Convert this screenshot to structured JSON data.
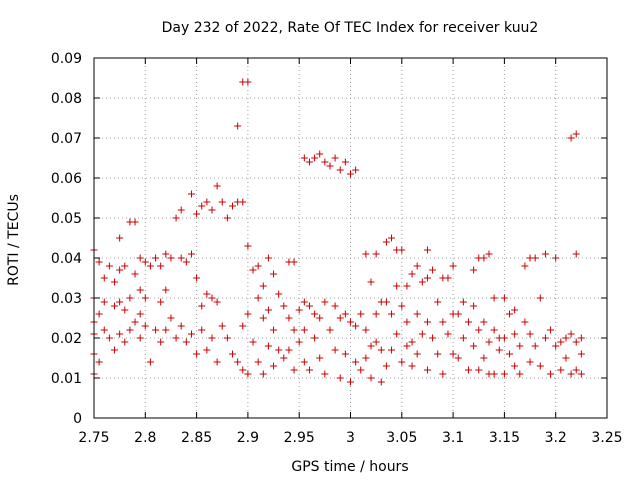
{
  "chart_data": {
    "type": "scatter",
    "title": "Day 232 of 2022, Rate Of TEC Index for receiver kuu2",
    "xlabel": "GPS time / hours",
    "ylabel": "ROTI / TECUs",
    "xlim": [
      2.75,
      3.25
    ],
    "ylim": [
      0,
      0.09
    ],
    "x_ticks": [
      "2.75",
      "2.8",
      "2.85",
      "2.9",
      "2.95",
      "3",
      "3.05",
      "3.1",
      "3.15",
      "3.2",
      "3.25"
    ],
    "y_ticks": [
      "0",
      "0.01",
      "0.02",
      "0.03",
      "0.04",
      "0.05",
      "0.06",
      "0.07",
      "0.08",
      "0.09"
    ],
    "grid": true,
    "marker": "plus",
    "color": "#cc0000",
    "series": [
      {
        "points": [
          [
            2.75,
            0.042
          ],
          [
            2.75,
            0.03
          ],
          [
            2.75,
            0.024
          ],
          [
            2.75,
            0.021
          ],
          [
            2.75,
            0.016
          ],
          [
            2.75,
            0.011
          ],
          [
            2.755,
            0.039
          ],
          [
            2.755,
            0.026
          ],
          [
            2.755,
            0.014
          ],
          [
            2.76,
            0.035
          ],
          [
            2.76,
            0.029
          ],
          [
            2.76,
            0.022
          ],
          [
            2.765,
            0.038
          ],
          [
            2.765,
            0.02
          ],
          [
            2.77,
            0.034
          ],
          [
            2.77,
            0.028
          ],
          [
            2.77,
            0.017
          ],
          [
            2.775,
            0.045
          ],
          [
            2.775,
            0.037
          ],
          [
            2.775,
            0.029
          ],
          [
            2.775,
            0.021
          ],
          [
            2.78,
            0.038
          ],
          [
            2.78,
            0.027
          ],
          [
            2.78,
            0.019
          ],
          [
            2.785,
            0.049
          ],
          [
            2.785,
            0.03
          ],
          [
            2.785,
            0.022
          ],
          [
            2.79,
            0.049
          ],
          [
            2.79,
            0.036
          ],
          [
            2.79,
            0.024
          ],
          [
            2.795,
            0.04
          ],
          [
            2.795,
            0.032
          ],
          [
            2.795,
            0.026
          ],
          [
            2.795,
            0.02
          ],
          [
            2.8,
            0.039
          ],
          [
            2.8,
            0.03
          ],
          [
            2.8,
            0.023
          ],
          [
            2.805,
            0.038
          ],
          [
            2.805,
            0.014
          ],
          [
            2.81,
            0.04
          ],
          [
            2.81,
            0.022
          ],
          [
            2.815,
            0.038
          ],
          [
            2.815,
            0.029
          ],
          [
            2.815,
            0.019
          ],
          [
            2.82,
            0.041
          ],
          [
            2.82,
            0.032
          ],
          [
            2.82,
            0.022
          ],
          [
            2.825,
            0.04
          ],
          [
            2.825,
            0.025
          ],
          [
            2.83,
            0.05
          ],
          [
            2.83,
            0.02
          ],
          [
            2.835,
            0.052
          ],
          [
            2.835,
            0.04
          ],
          [
            2.835,
            0.023
          ],
          [
            2.84,
            0.039
          ],
          [
            2.84,
            0.019
          ],
          [
            2.845,
            0.056
          ],
          [
            2.845,
            0.041
          ],
          [
            2.845,
            0.021
          ],
          [
            2.85,
            0.051
          ],
          [
            2.85,
            0.035
          ],
          [
            2.85,
            0.016
          ],
          [
            2.855,
            0.053
          ],
          [
            2.855,
            0.028
          ],
          [
            2.855,
            0.022
          ],
          [
            2.86,
            0.054
          ],
          [
            2.86,
            0.031
          ],
          [
            2.86,
            0.017
          ],
          [
            2.865,
            0.052
          ],
          [
            2.865,
            0.03
          ],
          [
            2.865,
            0.02
          ],
          [
            2.87,
            0.058
          ],
          [
            2.87,
            0.029
          ],
          [
            2.87,
            0.014
          ],
          [
            2.875,
            0.054
          ],
          [
            2.875,
            0.023
          ],
          [
            2.88,
            0.05
          ],
          [
            2.88,
            0.02
          ],
          [
            2.885,
            0.053
          ],
          [
            2.885,
            0.016
          ],
          [
            2.89,
            0.073
          ],
          [
            2.89,
            0.054
          ],
          [
            2.89,
            0.014
          ],
          [
            2.895,
            0.084
          ],
          [
            2.895,
            0.054
          ],
          [
            2.895,
            0.023
          ],
          [
            2.895,
            0.012
          ],
          [
            2.9,
            0.084
          ],
          [
            2.9,
            0.043
          ],
          [
            2.9,
            0.026
          ],
          [
            2.9,
            0.011
          ],
          [
            2.905,
            0.037
          ],
          [
            2.905,
            0.019
          ],
          [
            2.91,
            0.038
          ],
          [
            2.91,
            0.03
          ],
          [
            2.91,
            0.014
          ],
          [
            2.915,
            0.033
          ],
          [
            2.915,
            0.025
          ],
          [
            2.915,
            0.011
          ],
          [
            2.92,
            0.04
          ],
          [
            2.92,
            0.027
          ],
          [
            2.92,
            0.018
          ],
          [
            2.925,
            0.036
          ],
          [
            2.925,
            0.022
          ],
          [
            2.925,
            0.013
          ],
          [
            2.93,
            0.031
          ],
          [
            2.93,
            0.017
          ],
          [
            2.935,
            0.028
          ],
          [
            2.935,
            0.015
          ],
          [
            2.94,
            0.039
          ],
          [
            2.94,
            0.025
          ],
          [
            2.94,
            0.017
          ],
          [
            2.945,
            0.039
          ],
          [
            2.945,
            0.022
          ],
          [
            2.945,
            0.012
          ],
          [
            2.95,
            0.027
          ],
          [
            2.95,
            0.019
          ],
          [
            2.955,
            0.065
          ],
          [
            2.955,
            0.029
          ],
          [
            2.955,
            0.022
          ],
          [
            2.955,
            0.014
          ],
          [
            2.96,
            0.064
          ],
          [
            2.96,
            0.028
          ],
          [
            2.96,
            0.012
          ],
          [
            2.965,
            0.065
          ],
          [
            2.965,
            0.026
          ],
          [
            2.965,
            0.02
          ],
          [
            2.97,
            0.066
          ],
          [
            2.97,
            0.025
          ],
          [
            2.97,
            0.015
          ],
          [
            2.975,
            0.064
          ],
          [
            2.975,
            0.029
          ],
          [
            2.975,
            0.011
          ],
          [
            2.98,
            0.063
          ],
          [
            2.98,
            0.022
          ],
          [
            2.985,
            0.065
          ],
          [
            2.985,
            0.028
          ],
          [
            2.985,
            0.017
          ],
          [
            2.99,
            0.062
          ],
          [
            2.99,
            0.025
          ],
          [
            2.99,
            0.01
          ],
          [
            2.995,
            0.064
          ],
          [
            2.995,
            0.026
          ],
          [
            2.995,
            0.016
          ],
          [
            3.0,
            0.061
          ],
          [
            3.0,
            0.024
          ],
          [
            3.0,
            0.009
          ],
          [
            3.005,
            0.062
          ],
          [
            3.005,
            0.023
          ],
          [
            3.005,
            0.014
          ],
          [
            3.01,
            0.026
          ],
          [
            3.01,
            0.012
          ],
          [
            3.015,
            0.041
          ],
          [
            3.015,
            0.022
          ],
          [
            3.015,
            0.015
          ],
          [
            3.02,
            0.034
          ],
          [
            3.02,
            0.018
          ],
          [
            3.02,
            0.01
          ],
          [
            3.025,
            0.041
          ],
          [
            3.025,
            0.026
          ],
          [
            3.025,
            0.019
          ],
          [
            3.03,
            0.029
          ],
          [
            3.03,
            0.017
          ],
          [
            3.03,
            0.009
          ],
          [
            3.035,
            0.044
          ],
          [
            3.035,
            0.029
          ],
          [
            3.035,
            0.013
          ],
          [
            3.04,
            0.045
          ],
          [
            3.04,
            0.026
          ],
          [
            3.04,
            0.017
          ],
          [
            3.045,
            0.042
          ],
          [
            3.045,
            0.033
          ],
          [
            3.045,
            0.021
          ],
          [
            3.05,
            0.042
          ],
          [
            3.05,
            0.028
          ],
          [
            3.05,
            0.014
          ],
          [
            3.055,
            0.033
          ],
          [
            3.055,
            0.024
          ],
          [
            3.055,
            0.018
          ],
          [
            3.06,
            0.036
          ],
          [
            3.06,
            0.019
          ],
          [
            3.06,
            0.013
          ],
          [
            3.065,
            0.038
          ],
          [
            3.065,
            0.026
          ],
          [
            3.065,
            0.016
          ],
          [
            3.07,
            0.034
          ],
          [
            3.07,
            0.021
          ],
          [
            3.075,
            0.042
          ],
          [
            3.075,
            0.035
          ],
          [
            3.075,
            0.024
          ],
          [
            3.075,
            0.012
          ],
          [
            3.08,
            0.037
          ],
          [
            3.08,
            0.02
          ],
          [
            3.085,
            0.029
          ],
          [
            3.085,
            0.016
          ],
          [
            3.09,
            0.035
          ],
          [
            3.09,
            0.024
          ],
          [
            3.09,
            0.011
          ],
          [
            3.095,
            0.035
          ],
          [
            3.095,
            0.021
          ],
          [
            3.1,
            0.038
          ],
          [
            3.1,
            0.026
          ],
          [
            3.1,
            0.016
          ],
          [
            3.105,
            0.026
          ],
          [
            3.105,
            0.015
          ],
          [
            3.11,
            0.029
          ],
          [
            3.11,
            0.02
          ],
          [
            3.115,
            0.024
          ],
          [
            3.115,
            0.012
          ],
          [
            3.12,
            0.037
          ],
          [
            3.12,
            0.028
          ],
          [
            3.12,
            0.018
          ],
          [
            3.125,
            0.04
          ],
          [
            3.125,
            0.022
          ],
          [
            3.125,
            0.012
          ],
          [
            3.13,
            0.04
          ],
          [
            3.13,
            0.024
          ],
          [
            3.13,
            0.015
          ],
          [
            3.135,
            0.041
          ],
          [
            3.135,
            0.019
          ],
          [
            3.135,
            0.011
          ],
          [
            3.14,
            0.03
          ],
          [
            3.14,
            0.022
          ],
          [
            3.14,
            0.011
          ],
          [
            3.145,
            0.02
          ],
          [
            3.145,
            0.017
          ],
          [
            3.15,
            0.03
          ],
          [
            3.15,
            0.02
          ],
          [
            3.15,
            0.011
          ],
          [
            3.155,
            0.026
          ],
          [
            3.155,
            0.016
          ],
          [
            3.16,
            0.027
          ],
          [
            3.16,
            0.021
          ],
          [
            3.16,
            0.013
          ],
          [
            3.165,
            0.018
          ],
          [
            3.165,
            0.011
          ],
          [
            3.17,
            0.038
          ],
          [
            3.17,
            0.024
          ],
          [
            3.175,
            0.04
          ],
          [
            3.175,
            0.021
          ],
          [
            3.175,
            0.014
          ],
          [
            3.18,
            0.04
          ],
          [
            3.18,
            0.018
          ],
          [
            3.185,
            0.03
          ],
          [
            3.185,
            0.013
          ],
          [
            3.19,
            0.041
          ],
          [
            3.19,
            0.02
          ],
          [
            3.195,
            0.022
          ],
          [
            3.195,
            0.011
          ],
          [
            3.2,
            0.04
          ],
          [
            3.2,
            0.018
          ],
          [
            3.205,
            0.019
          ],
          [
            3.205,
            0.012
          ],
          [
            3.21,
            0.02
          ],
          [
            3.21,
            0.015
          ],
          [
            3.215,
            0.07
          ],
          [
            3.215,
            0.021
          ],
          [
            3.215,
            0.011
          ],
          [
            3.22,
            0.071
          ],
          [
            3.22,
            0.041
          ],
          [
            3.22,
            0.019
          ],
          [
            3.22,
            0.012
          ],
          [
            3.225,
            0.02
          ],
          [
            3.225,
            0.016
          ],
          [
            3.225,
            0.011
          ]
        ]
      }
    ]
  }
}
